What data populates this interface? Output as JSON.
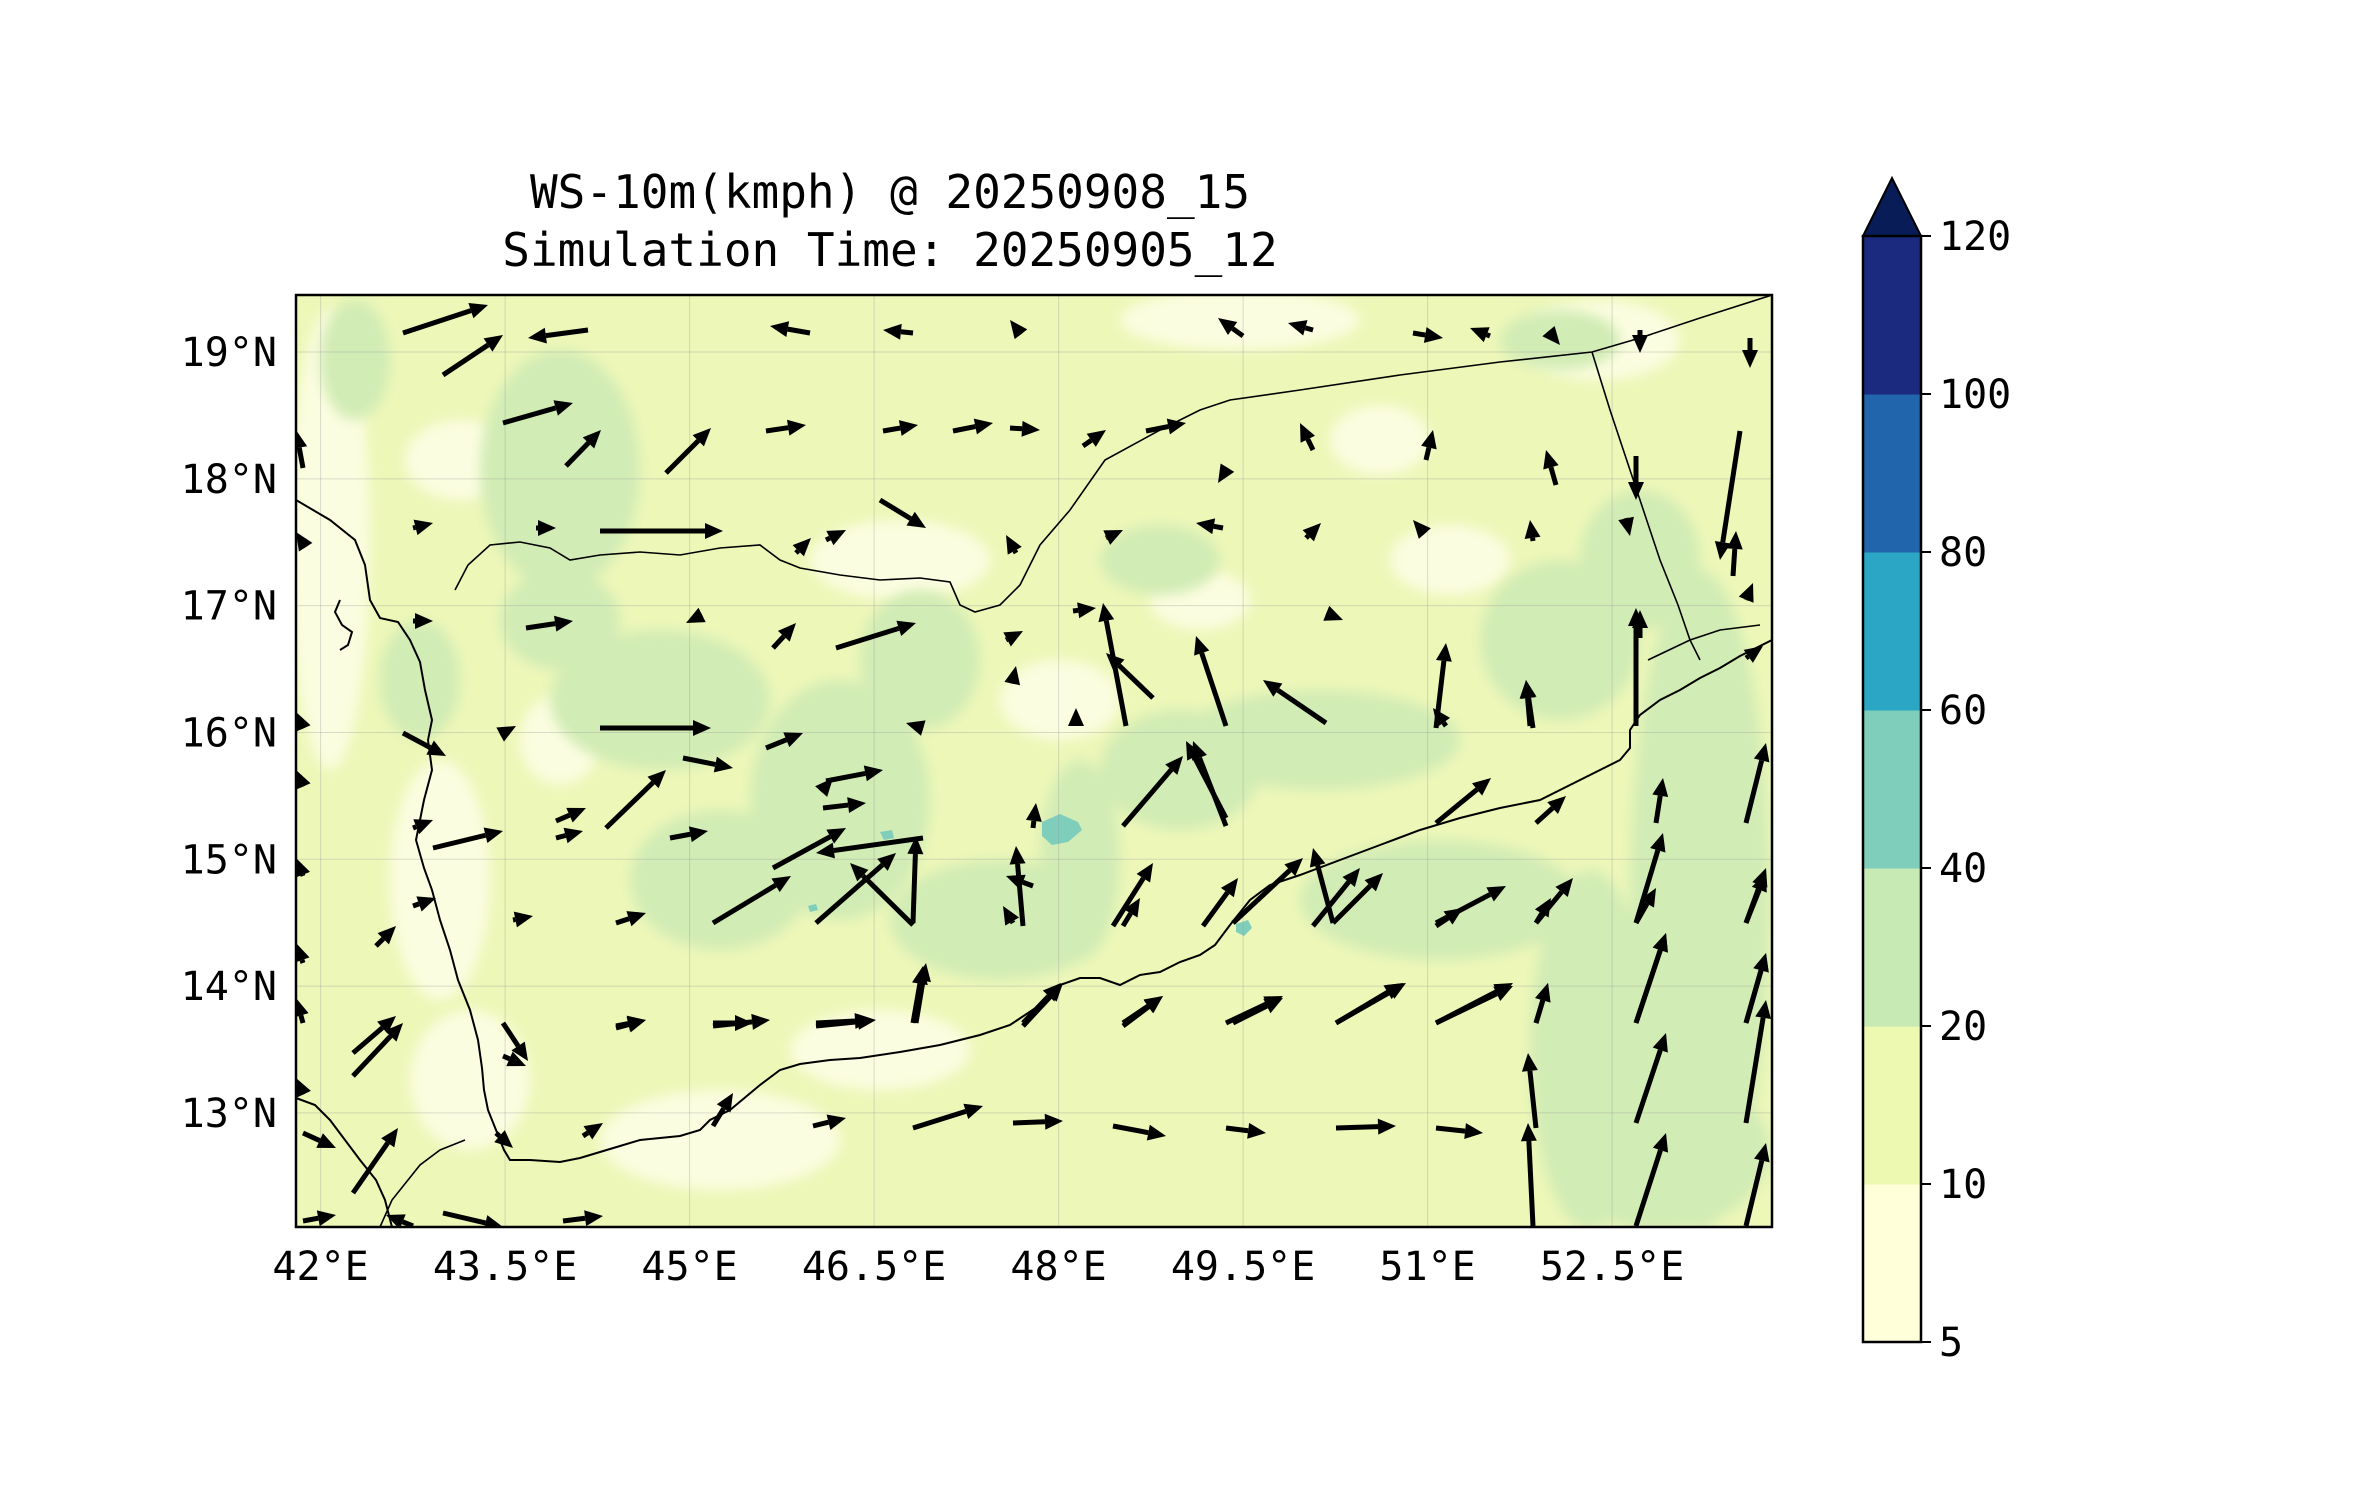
{
  "title": "WS-10m(kmph) @ 20250908_15",
  "subtitle": "Simulation Time: 20250905_12",
  "map": {
    "lon_range": [
      41.8,
      53.8
    ],
    "lat_range": [
      12.1,
      19.45
    ],
    "lon_ticks": [
      42.0,
      43.5,
      45.0,
      46.5,
      48.0,
      49.5,
      51.0,
      52.5
    ],
    "lon_tick_labels": [
      "42°E",
      "43.5°E",
      "45°E",
      "46.5°E",
      "48°E",
      "49.5°E",
      "51°E",
      "52.5°E"
    ],
    "lat_ticks": [
      13,
      14,
      15,
      16,
      17,
      18,
      19
    ],
    "lat_tick_labels": [
      "13°N",
      "14°N",
      "15°N",
      "16°N",
      "17°N",
      "18°N",
      "19°N"
    ],
    "gridlines": true
  },
  "colorbar": {
    "levels": [
      5,
      10,
      20,
      40,
      60,
      80,
      100,
      120
    ],
    "labels": [
      "5",
      "10",
      "20",
      "40",
      "60",
      "80",
      "100",
      "120"
    ],
    "colors": [
      "#ffffd9",
      "#edf8b1",
      "#c7e9b4",
      "#7fcdbb",
      "#2ba7c5",
      "#2165ac",
      "#1b2a7e"
    ],
    "extend_color": "#081d58",
    "extend": "max"
  },
  "colors": {
    "land_fill": "#edf7b8",
    "patch_light": "#fbfde0",
    "patch_mid": "#d2ecb5",
    "patch_teal": "#7fcdbb",
    "arrow": "#000000"
  }
}
